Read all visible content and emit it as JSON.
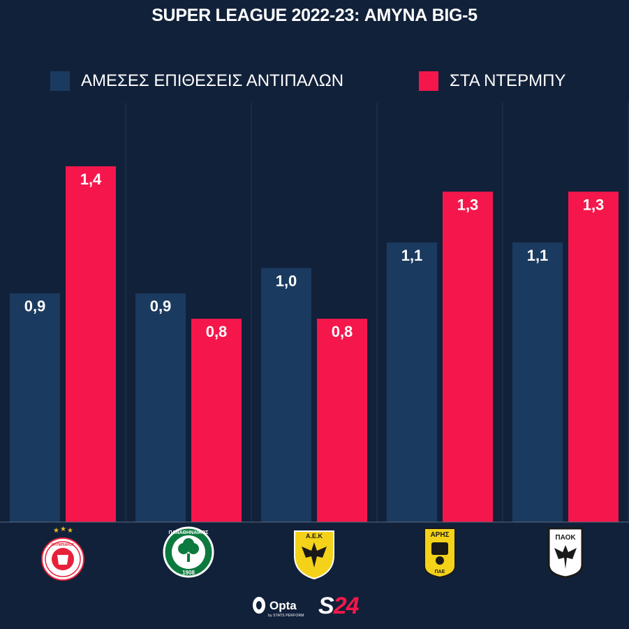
{
  "title": "SUPER LEAGUE 2022-23: ΑΜΥΝΑ BIG-5",
  "colors": {
    "background": "#12213a",
    "direct": "#1b3a5f",
    "derby": "#f5174b"
  },
  "chart_data": {
    "type": "bar",
    "title": "SUPER LEAGUE 2022-23: ΑΜΥΝΑ BIG-5",
    "categories": [
      "Ολυμπιακός",
      "Παναθηναϊκός",
      "ΑΕΚ",
      "Άρης",
      "ΠΑΟΚ"
    ],
    "series": [
      {
        "name": "ΑΜΕΣΕΣ ΕΠΙΘΕΣΕΙΣ ΑΝΤΙΠΑΛΩΝ",
        "values": [
          0.9,
          0.9,
          1.0,
          1.1,
          1.1
        ],
        "labels": [
          "0,9",
          "0,9",
          "1,0",
          "1,1",
          "1,1"
        ]
      },
      {
        "name": "ΣΤΑ ΝΤΕΡΜΠΥ",
        "values": [
          1.4,
          0.8,
          0.8,
          1.3,
          1.3
        ],
        "labels": [
          "1,4",
          "0,8",
          "0,8",
          "1,3",
          "1,3"
        ]
      }
    ],
    "ylim": [
      0,
      1.65
    ],
    "legend": "top",
    "grid": false,
    "xlabel": "",
    "ylabel": ""
  },
  "logos": {
    "olympiacos_text": "ΟΛΥΜΠΙΑΚΟΣ",
    "panathinaikos_text": "ΠΑΝΑΘΗΝΑΪΚΟΣ",
    "panathinaikos_year": "1908",
    "aek_text": "Α.Ε.Κ",
    "aris_text": "ΑΡΗΣ",
    "aris_sub": "ΠΑΕ",
    "paok_text": "ΠΑΟΚ"
  },
  "footer": {
    "opta_label": "Opta",
    "opta_sub": "by STATS PERFORM",
    "s24_s": "S",
    "s24_n": "24"
  }
}
